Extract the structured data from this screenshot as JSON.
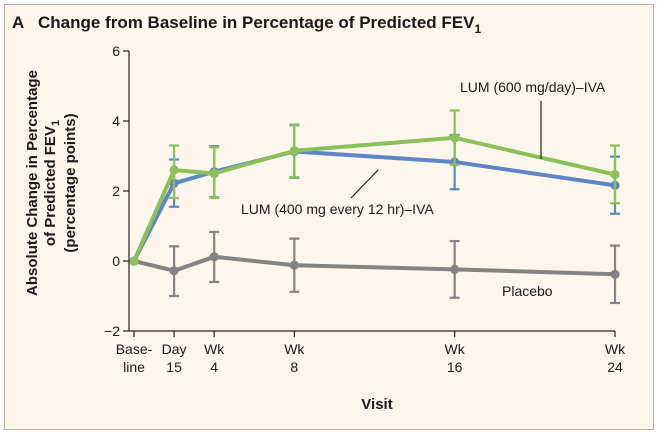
{
  "panel_letter": "A",
  "chart_data": {
    "type": "line",
    "title": "Change from Baseline in Percentage of Predicted FEV",
    "title_subscript": "1",
    "xlabel": "Visit",
    "ylabel_lines": [
      "Absolute Change in Percentage",
      "of Predicted FEV",
      "(percentage points)"
    ],
    "ylabel_subscript": "1",
    "ylim": [
      -2,
      6
    ],
    "yticks": [
      -2,
      0,
      2,
      4,
      6
    ],
    "x_weeks": [
      0,
      2,
      4,
      8,
      16,
      24
    ],
    "categories": [
      [
        "Base-",
        "line"
      ],
      [
        "Day",
        "15"
      ],
      [
        "Wk",
        "4"
      ],
      [
        "Wk",
        "8"
      ],
      [
        "Wk",
        "16"
      ],
      [
        "Wk",
        "24"
      ]
    ],
    "series": [
      {
        "name": "LUM (600 mg/day)–IVA",
        "color": "#8cc05a",
        "values": [
          0,
          2.6,
          2.5,
          3.15,
          3.52,
          2.47
        ],
        "err_low": [
          0,
          1.8,
          1.8,
          2.4,
          2.75,
          1.65
        ],
        "err_high": [
          0,
          3.3,
          3.25,
          3.9,
          4.3,
          3.3
        ]
      },
      {
        "name": "LUM (400 mg every 12 hr)–IVA",
        "color": "#5f86c4",
        "values": [
          0,
          2.22,
          2.55,
          3.13,
          2.83,
          2.16
        ],
        "err_low": [
          0,
          1.55,
          1.82,
          2.38,
          2.05,
          1.35
        ],
        "err_high": [
          0,
          2.9,
          3.28,
          3.88,
          3.6,
          2.98
        ]
      },
      {
        "name": "Placebo",
        "color": "#838383",
        "values": [
          0,
          -0.28,
          0.12,
          -0.12,
          -0.24,
          -0.38
        ],
        "err_low": [
          0,
          -1.0,
          -0.6,
          -0.88,
          -1.05,
          -1.2
        ],
        "err_high": [
          0,
          0.42,
          0.83,
          0.64,
          0.57,
          0.44
        ]
      }
    ]
  }
}
